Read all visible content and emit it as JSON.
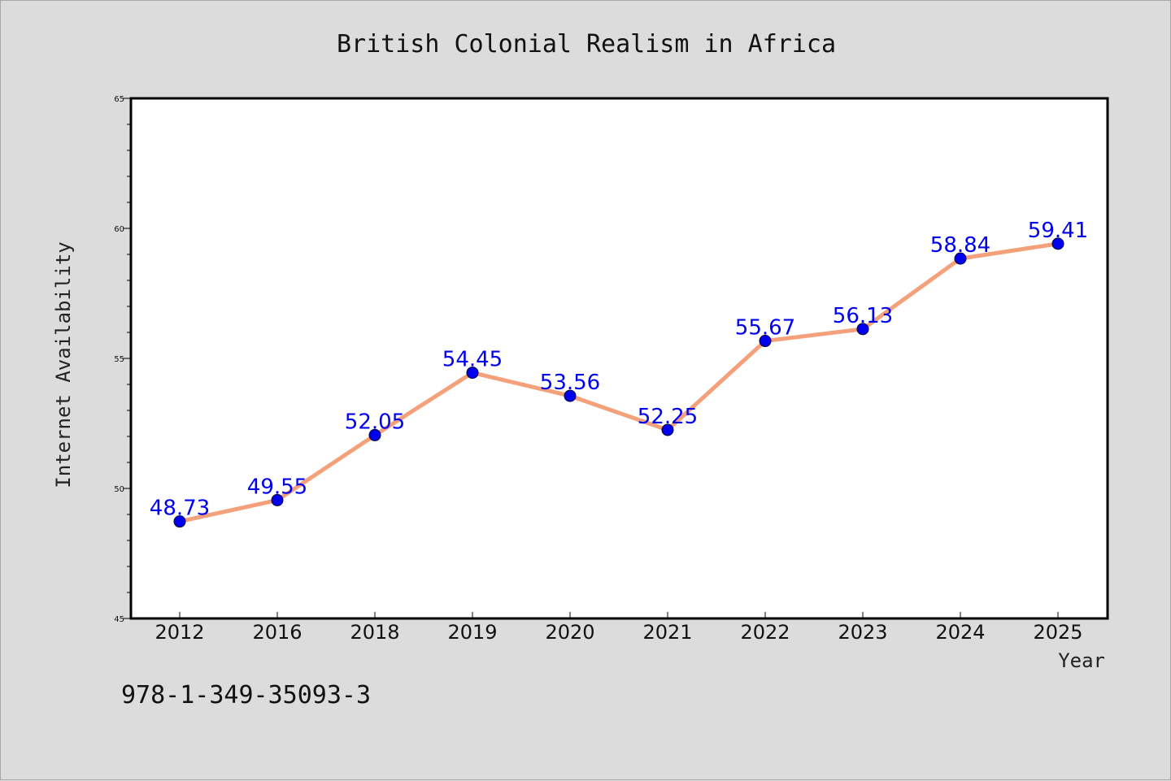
{
  "chart_data": {
    "type": "line",
    "title": "British Colonial Realism in Africa",
    "xlabel": "Year",
    "ylabel": "Internet Availability",
    "categories": [
      "2012",
      "2016",
      "2018",
      "2019",
      "2020",
      "2021",
      "2022",
      "2023",
      "2024",
      "2025"
    ],
    "series": [
      {
        "values": [
          48.73,
          49.55,
          52.05,
          54.45,
          53.56,
          52.25,
          55.67,
          56.13,
          58.84,
          59.41
        ],
        "data_labels": [
          "48.73",
          "49.55",
          "52.05",
          "54.45",
          "53.56",
          "52.25",
          "55.67",
          "56.13",
          "58.84",
          "59.41"
        ]
      }
    ],
    "ylim": [
      45,
      65
    ],
    "yticks": [
      45,
      50,
      55,
      60,
      65
    ],
    "ytick_labels": [
      "45",
      "50",
      "55",
      "60",
      "65"
    ],
    "grid": false,
    "colors": {
      "line": "#f4a07a",
      "marker": "#0000ee",
      "data_label": "#0000ee",
      "background": "#dcdcdc",
      "plot_background": "#ffffff"
    }
  },
  "footer": {
    "isbn": "978-1-349-35093-3"
  }
}
